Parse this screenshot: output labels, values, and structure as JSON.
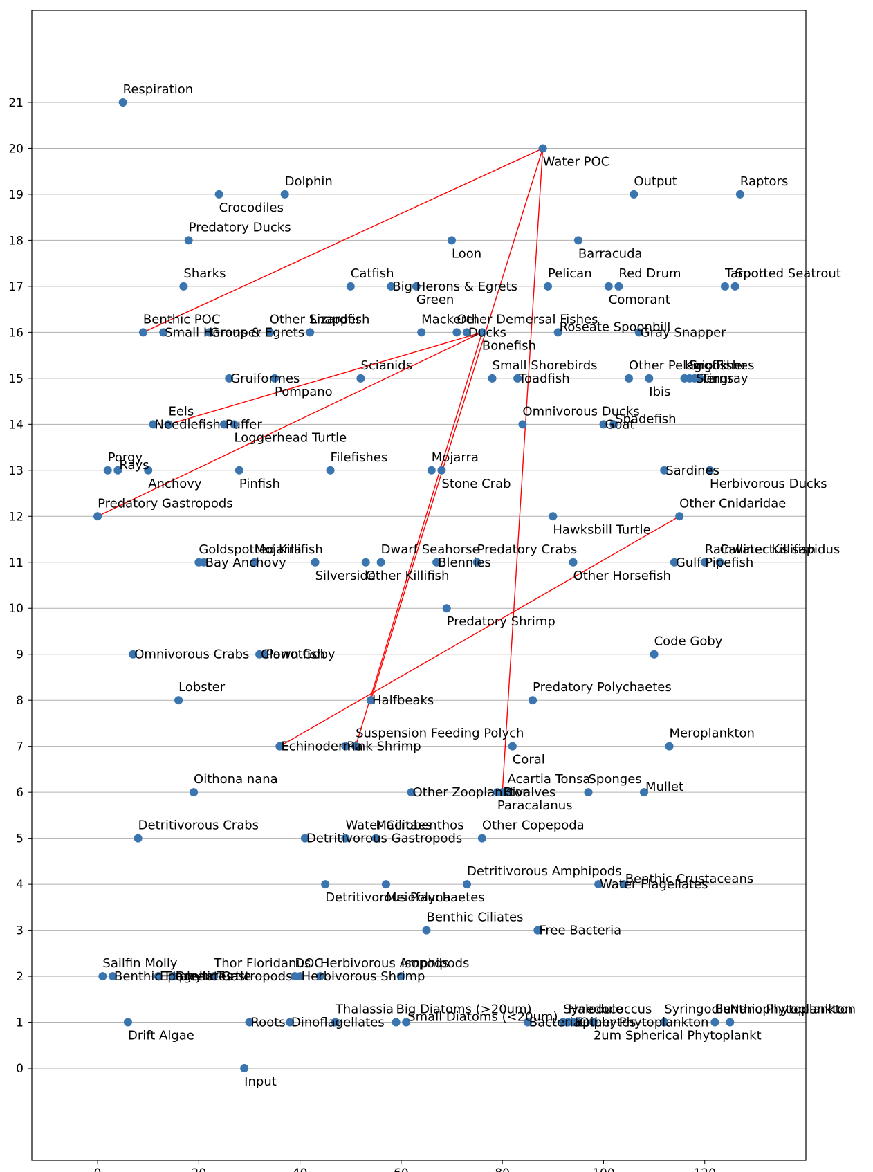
{
  "chart_data": {
    "type": "scatter",
    "title": "",
    "xlabel": "",
    "ylabel": "",
    "xlim": [
      -13,
      140
    ],
    "ylim": [
      -2,
      23
    ],
    "x_ticks": [
      0,
      20,
      40,
      60,
      80,
      100,
      120
    ],
    "y_ticks": [
      0,
      1,
      2,
      3,
      4,
      5,
      6,
      7,
      8,
      9,
      10,
      11,
      12,
      13,
      14,
      15,
      16,
      17,
      18,
      19,
      20,
      21
    ],
    "grid": "horizontal",
    "colors": {
      "points": "#3b75af",
      "lines": "#ff0000",
      "grid": "#b0b0b0"
    },
    "points": [
      {
        "label": "Respiration",
        "x": 5,
        "y": 21,
        "anchor": "above"
      },
      {
        "label": "Water POC",
        "x": 88,
        "y": 20,
        "anchor": "below"
      },
      {
        "label": "Crocodiles",
        "x": 24,
        "y": 19,
        "anchor": "below"
      },
      {
        "label": "Dolphin",
        "x": 37,
        "y": 19,
        "anchor": "above"
      },
      {
        "label": "Output",
        "x": 106,
        "y": 19,
        "anchor": "above"
      },
      {
        "label": "Raptors",
        "x": 127,
        "y": 19,
        "anchor": "above"
      },
      {
        "label": "Predatory Ducks",
        "x": 18,
        "y": 18,
        "anchor": "above"
      },
      {
        "label": "Loon",
        "x": 70,
        "y": 18,
        "anchor": "below"
      },
      {
        "label": "Barracuda",
        "x": 95,
        "y": 18,
        "anchor": "below"
      },
      {
        "label": "Sharks",
        "x": 17,
        "y": 17,
        "anchor": "above"
      },
      {
        "label": "Catfish",
        "x": 50,
        "y": 17,
        "anchor": "above"
      },
      {
        "label": "Big Herons & Egrets",
        "x": 58,
        "y": 17,
        "anchor": "right"
      },
      {
        "label": "Green",
        "x": 63,
        "y": 17,
        "anchor": "below"
      },
      {
        "label": "Pelican",
        "x": 89,
        "y": 17,
        "anchor": "above"
      },
      {
        "label": "Red Drum",
        "x": 103,
        "y": 17,
        "anchor": "above"
      },
      {
        "label": "Comorant",
        "x": 101,
        "y": 17,
        "anchor": "below"
      },
      {
        "label": "Tarpon",
        "x": 124,
        "y": 17,
        "anchor": "above"
      },
      {
        "label": "Spotted Seatrout",
        "x": 126,
        "y": 17,
        "anchor": "above"
      },
      {
        "label": "Benthic POC",
        "x": 9,
        "y": 16,
        "anchor": "above"
      },
      {
        "label": "Small Herons & Egrets",
        "x": 13,
        "y": 16,
        "anchor": "right"
      },
      {
        "label": "Grouper",
        "x": 22,
        "y": 16,
        "anchor": "right"
      },
      {
        "label": "Other Snapper",
        "x": 34,
        "y": 16,
        "anchor": "above"
      },
      {
        "label": "Lizardfish",
        "x": 42,
        "y": 16,
        "anchor": "above"
      },
      {
        "label": "Mackerel",
        "x": 64,
        "y": 16,
        "anchor": "above"
      },
      {
        "label": "Other Demersal Fishes",
        "x": 71,
        "y": 16,
        "anchor": "above"
      },
      {
        "label": "Ducks",
        "x": 73,
        "y": 16,
        "anchor": "right"
      },
      {
        "label": "Bonefish",
        "x": 76,
        "y": 16,
        "anchor": "below"
      },
      {
        "label": "Roseate Spoonbill",
        "x": 91,
        "y": 16,
        "anchor": "right-up"
      },
      {
        "label": "Gray Snapper",
        "x": 107,
        "y": 16,
        "anchor": "right"
      },
      {
        "label": "Scianids",
        "x": 52,
        "y": 15,
        "anchor": "above"
      },
      {
        "label": "Gruiformes",
        "x": 26,
        "y": 15,
        "anchor": "right"
      },
      {
        "label": "Pompano",
        "x": 35,
        "y": 15,
        "anchor": "below"
      },
      {
        "label": "Small Shorebirds",
        "x": 78,
        "y": 15,
        "anchor": "above"
      },
      {
        "label": "Toadfish",
        "x": 83,
        "y": 15,
        "anchor": "right"
      },
      {
        "label": "Other Pelagic Fishes",
        "x": 105,
        "y": 15,
        "anchor": "above"
      },
      {
        "label": "Ibis",
        "x": 109,
        "y": 15,
        "anchor": "below"
      },
      {
        "label": "Kingfisher",
        "x": 116,
        "y": 15,
        "anchor": "above"
      },
      {
        "label": "Snook",
        "x": 117,
        "y": 15,
        "anchor": "above"
      },
      {
        "label": "Terns",
        "x": 119,
        "y": 15,
        "anchor": "right"
      },
      {
        "label": "Stingray",
        "x": 118,
        "y": 15,
        "anchor": "right"
      },
      {
        "label": "Eels",
        "x": 14,
        "y": 14,
        "anchor": "above"
      },
      {
        "label": "Needlefish",
        "x": 11,
        "y": 14,
        "anchor": "right"
      },
      {
        "label": "Puffer",
        "x": 25,
        "y": 14,
        "anchor": "right"
      },
      {
        "label": "Loggerhead Turtle",
        "x": 27,
        "y": 14,
        "anchor": "below"
      },
      {
        "label": "Omnivorous Ducks",
        "x": 84,
        "y": 14,
        "anchor": "above"
      },
      {
        "label": "Goat",
        "x": 100,
        "y": 14,
        "anchor": "right"
      },
      {
        "label": "Spadefish",
        "x": 102,
        "y": 14,
        "anchor": "right-up"
      },
      {
        "label": "Porgy",
        "x": 2,
        "y": 13,
        "anchor": "above"
      },
      {
        "label": "Rays",
        "x": 4,
        "y": 13,
        "anchor": "right-up"
      },
      {
        "label": "Anchovy",
        "x": 10,
        "y": 13,
        "anchor": "below"
      },
      {
        "label": "Pinfish",
        "x": 28,
        "y": 13,
        "anchor": "below"
      },
      {
        "label": "Filefishes",
        "x": 46,
        "y": 13,
        "anchor": "above"
      },
      {
        "label": "Mojarra",
        "x": 66,
        "y": 13,
        "anchor": "above"
      },
      {
        "label": "Stone Crab",
        "x": 68,
        "y": 13,
        "anchor": "below"
      },
      {
        "label": "Sardines",
        "x": 112,
        "y": 13,
        "anchor": "right"
      },
      {
        "label": "Herbivorous Ducks",
        "x": 121,
        "y": 13,
        "anchor": "below"
      },
      {
        "label": "Predatory Gastropods",
        "x": 0,
        "y": 12,
        "anchor": "above"
      },
      {
        "label": "Hawksbill Turtle",
        "x": 90,
        "y": 12,
        "anchor": "below"
      },
      {
        "label": "Other Cnidaridae",
        "x": 115,
        "y": 12,
        "anchor": "above"
      },
      {
        "label": "Goldspotted Killifish",
        "x": 20,
        "y": 11,
        "anchor": "above"
      },
      {
        "label": "Bay Anchovy",
        "x": 21,
        "y": 11,
        "anchor": "right"
      },
      {
        "label": "Mojarra",
        "x": 31,
        "y": 11,
        "anchor": "above"
      },
      {
        "label": "Silverside",
        "x": 43,
        "y": 11,
        "anchor": "below"
      },
      {
        "label": "Other Killifish",
        "x": 53,
        "y": 11,
        "anchor": "below"
      },
      {
        "label": "Dwarf Seahorse",
        "x": 56,
        "y": 11,
        "anchor": "above"
      },
      {
        "label": "Blennies",
        "x": 67,
        "y": 11,
        "anchor": "right"
      },
      {
        "label": "Predatory Crabs",
        "x": 75,
        "y": 11,
        "anchor": "above"
      },
      {
        "label": "Other Horsefish",
        "x": 94,
        "y": 11,
        "anchor": "below"
      },
      {
        "label": "Gulf Pipefish",
        "x": 114,
        "y": 11,
        "anchor": "right"
      },
      {
        "label": "Rainwater Killifish",
        "x": 120,
        "y": 11,
        "anchor": "above"
      },
      {
        "label": "Callinectus sapidus",
        "x": 123,
        "y": 11,
        "anchor": "above"
      },
      {
        "label": "Predatory Shrimp",
        "x": 69,
        "y": 10,
        "anchor": "below"
      },
      {
        "label": "Omnivorous Crabs",
        "x": 7,
        "y": 9,
        "anchor": "right"
      },
      {
        "label": "Parrotfish",
        "x": 33,
        "y": 9,
        "anchor": "right"
      },
      {
        "label": "Clown Goby",
        "x": 32,
        "y": 9,
        "anchor": "right"
      },
      {
        "label": "Code Goby",
        "x": 110,
        "y": 9,
        "anchor": "above"
      },
      {
        "label": "Lobster",
        "x": 16,
        "y": 8,
        "anchor": "above"
      },
      {
        "label": "Halfbeaks",
        "x": 54,
        "y": 8,
        "anchor": "right"
      },
      {
        "label": "Predatory Polychaetes",
        "x": 86,
        "y": 8,
        "anchor": "above"
      },
      {
        "label": "Echinoderma",
        "x": 36,
        "y": 7,
        "anchor": "right"
      },
      {
        "label": "Pink Shrimp",
        "x": 49,
        "y": 7,
        "anchor": "right"
      },
      {
        "label": "Suspension Feeding Polych",
        "x": 51,
        "y": 7,
        "anchor": "above"
      },
      {
        "label": "Coral",
        "x": 82,
        "y": 7,
        "anchor": "below"
      },
      {
        "label": "Meroplankton",
        "x": 113,
        "y": 7,
        "anchor": "above"
      },
      {
        "label": "Oithona nana",
        "x": 19,
        "y": 6,
        "anchor": "above"
      },
      {
        "label": "Other Zooplankton",
        "x": 62,
        "y": 6,
        "anchor": "right"
      },
      {
        "label": "Acartia Tonsa",
        "x": 81,
        "y": 6,
        "anchor": "above"
      },
      {
        "label": "Sponges",
        "x": 97,
        "y": 6,
        "anchor": "above"
      },
      {
        "label": "Mullet",
        "x": 108,
        "y": 6,
        "anchor": "right-up"
      },
      {
        "label": "Bivalves",
        "x": 80,
        "y": 6,
        "anchor": "right"
      },
      {
        "label": "Paracalanus",
        "x": 79,
        "y": 6,
        "anchor": "below"
      },
      {
        "label": "Detritivorous Crabs",
        "x": 8,
        "y": 5,
        "anchor": "above"
      },
      {
        "label": "Detritivorous Gastropods",
        "x": 41,
        "y": 5,
        "anchor": "right"
      },
      {
        "label": "Water Cilitaes",
        "x": 49,
        "y": 5,
        "anchor": "above"
      },
      {
        "label": "Macrobenthos",
        "x": 55,
        "y": 5,
        "anchor": "above"
      },
      {
        "label": "Other Copepoda",
        "x": 76,
        "y": 5,
        "anchor": "above"
      },
      {
        "label": "Detritivorous Polychaetes",
        "x": 45,
        "y": 4,
        "anchor": "below"
      },
      {
        "label": "Meiofauna",
        "x": 57,
        "y": 4,
        "anchor": "below"
      },
      {
        "label": "Detritivorous Amphipods",
        "x": 73,
        "y": 4,
        "anchor": "above"
      },
      {
        "label": "Water Flagellates",
        "x": 99,
        "y": 4,
        "anchor": "right"
      },
      {
        "label": "Benthic Crustaceans",
        "x": 104,
        "y": 4,
        "anchor": "right-up"
      },
      {
        "label": "Benthic Ciliates",
        "x": 65,
        "y": 3,
        "anchor": "above"
      },
      {
        "label": "Free Bacteria",
        "x": 87,
        "y": 3,
        "anchor": "right"
      },
      {
        "label": "Sailfin Molly",
        "x": 1,
        "y": 2,
        "anchor": "above"
      },
      {
        "label": "Benthic Flagellates",
        "x": 3,
        "y": 2,
        "anchor": "right"
      },
      {
        "label": "Epiphytic Gastropods",
        "x": 12,
        "y": 2,
        "anchor": "right"
      },
      {
        "label": "Green Turtle",
        "x": 15,
        "y": 2,
        "anchor": "right"
      },
      {
        "label": "Thor Floridanus",
        "x": 23,
        "y": 2,
        "anchor": "above"
      },
      {
        "label": "DOC",
        "x": 39,
        "y": 2,
        "anchor": "above"
      },
      {
        "label": "Herbivorous Shrimp",
        "x": 40,
        "y": 2,
        "anchor": "right"
      },
      {
        "label": "Herbivorous Amphipods",
        "x": 44,
        "y": 2,
        "anchor": "above"
      },
      {
        "label": "Isopods",
        "x": 60,
        "y": 2,
        "anchor": "above"
      },
      {
        "label": "Drift Algae",
        "x": 6,
        "y": 1,
        "anchor": "below"
      },
      {
        "label": "Roots",
        "x": 30,
        "y": 1,
        "anchor": "right"
      },
      {
        "label": "Dinoflagellates",
        "x": 38,
        "y": 1,
        "anchor": "right"
      },
      {
        "label": "Thalassia",
        "x": 47,
        "y": 1,
        "anchor": "above"
      },
      {
        "label": "Big Diatoms (>20um)",
        "x": 59,
        "y": 1,
        "anchor": "above"
      },
      {
        "label": "Small Diatoms (<20um)",
        "x": 61,
        "y": 1,
        "anchor": "right-up"
      },
      {
        "label": "Synedococcus",
        "x": 92,
        "y": 1,
        "anchor": "above"
      },
      {
        "label": "Halodule",
        "x": 93,
        "y": 1,
        "anchor": "above"
      },
      {
        "label": "Epiphytes",
        "x": 94,
        "y": 1,
        "anchor": "right"
      },
      {
        "label": "Other Phytoplankton",
        "x": 95,
        "y": 1,
        "anchor": "right"
      },
      {
        "label": "Bacteria",
        "x": 85,
        "y": 1,
        "anchor": "right"
      },
      {
        "label": "2um Spherical Phytoplankt",
        "x": 98,
        "y": 1,
        "anchor": "below"
      },
      {
        "label": "Syringodium",
        "x": 112,
        "y": 1,
        "anchor": "above"
      },
      {
        "label": "Benthic Phytoplankton",
        "x": 122,
        "y": 1,
        "anchor": "above"
      },
      {
        "label": "Nanophytoplankton",
        "x": 125,
        "y": 1,
        "anchor": "above"
      },
      {
        "label": "Input",
        "x": 29,
        "y": 0,
        "anchor": "below"
      }
    ],
    "lines": [
      {
        "from": [
          9,
          16
        ],
        "to": [
          88,
          20
        ]
      },
      {
        "from": [
          88,
          20
        ],
        "to": [
          54,
          8
        ]
      },
      {
        "from": [
          88,
          20
        ],
        "to": [
          80,
          6
        ]
      },
      {
        "from": [
          14,
          14
        ],
        "to": [
          76,
          16
        ]
      },
      {
        "from": [
          0,
          12
        ],
        "to": [
          76,
          16
        ]
      },
      {
        "from": [
          76,
          16
        ],
        "to": [
          51,
          7
        ]
      },
      {
        "from": [
          36,
          7
        ],
        "to": [
          115,
          12
        ]
      }
    ]
  }
}
